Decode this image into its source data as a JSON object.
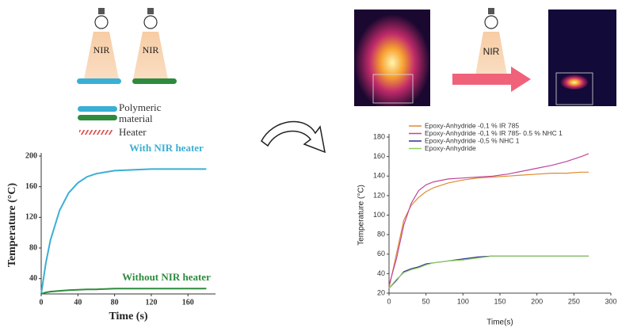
{
  "illustration": {
    "labels": [
      "NIR",
      "NIR",
      "NIR"
    ],
    "legend": [
      "Polymeric",
      "material",
      "Heater"
    ]
  },
  "chart_data": [
    {
      "type": "line",
      "legend": "inline",
      "ylabel": "Temperature (°C)",
      "xlabel": "Time (s)",
      "xlim": [
        0,
        190
      ],
      "ylim": [
        20,
        200
      ],
      "xticks": [
        0,
        40,
        80,
        120,
        160
      ],
      "yticks": [
        40,
        80,
        120,
        160,
        200
      ],
      "x": [
        0,
        5,
        10,
        20,
        30,
        40,
        50,
        60,
        80,
        100,
        120,
        140,
        160,
        180
      ],
      "series": [
        {
          "name": "With NIR heater",
          "color": "#3aafd5",
          "values": [
            20,
            60,
            90,
            129,
            152,
            165,
            173,
            177,
            181,
            182,
            183,
            183,
            183,
            183
          ]
        },
        {
          "name": "Without NIR heater",
          "color": "#2e8b3e",
          "values": [
            20,
            22,
            23,
            24,
            25,
            25.5,
            26,
            26,
            27,
            27,
            27,
            27,
            27,
            27
          ]
        }
      ]
    },
    {
      "type": "line",
      "legend": "upper left",
      "ylabel": "Temperature (°C)",
      "xlabel": "Time(s)",
      "xlim": [
        0,
        300
      ],
      "ylim": [
        20,
        180
      ],
      "xticks": [
        0,
        50,
        100,
        150,
        200,
        250,
        300
      ],
      "yticks": [
        20,
        40,
        60,
        80,
        100,
        120,
        140,
        160,
        180
      ],
      "x": [
        0,
        10,
        20,
        30,
        40,
        50,
        60,
        80,
        100,
        120,
        140,
        160,
        180,
        200,
        220,
        240,
        260,
        270
      ],
      "series": [
        {
          "name": "Epoxy-Anhydride -0,1 % IR 785",
          "color": "#e08a2e",
          "values": [
            25,
            60,
            95,
            110,
            118,
            124,
            128,
            133,
            136,
            138,
            139,
            140,
            141,
            142,
            143,
            143,
            144,
            144
          ]
        },
        {
          "name": "Epoxy-Anhydride -0,1 % IR 785- 0.5 % NHC 1",
          "color": "#c0469b",
          "values": [
            28,
            55,
            90,
            112,
            125,
            131,
            134,
            137,
            138,
            139,
            140,
            142,
            145,
            148,
            151,
            155,
            160,
            163
          ]
        },
        {
          "name": "Epoxy-Anhydride -0,5 % NHC 1",
          "color": "#2c2f8f",
          "values": [
            25,
            33,
            42,
            45,
            47,
            50,
            51,
            53,
            55,
            57,
            58,
            58,
            58,
            58,
            58,
            58,
            58,
            58
          ]
        },
        {
          "name": "Epoxy-Anhydride",
          "color": "#8fcf5a",
          "values": [
            25,
            34,
            41,
            44,
            46,
            49,
            51,
            53,
            54,
            56,
            58,
            58,
            58,
            58,
            58,
            58,
            58,
            58
          ]
        }
      ]
    }
  ]
}
